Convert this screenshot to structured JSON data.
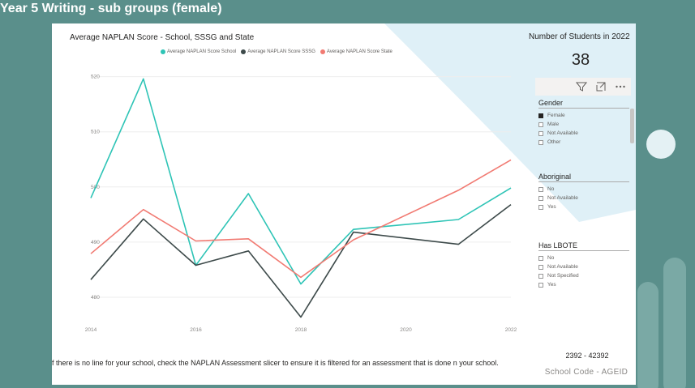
{
  "page": {
    "title": "Year 5 Writing - sub groups (female)"
  },
  "chart": {
    "title": "Average NAPLAN Score - School, SSSG and State",
    "legend": [
      {
        "label": "Average NAPLAN Score School",
        "color": "#2ec4b6"
      },
      {
        "label": "Average NAPLAN Score SSSG",
        "color": "#3d4a4a"
      },
      {
        "label": "Average NAPLAN Score State",
        "color": "#f17a72"
      }
    ]
  },
  "chart_data": {
    "type": "line",
    "x": [
      2014,
      2015,
      2016,
      2017,
      2018,
      2019,
      2021,
      2022
    ],
    "x_ticks": [
      "2014",
      "2016",
      "2018",
      "2020",
      "2022"
    ],
    "y_ticks": [
      "520",
      "510",
      "500",
      "490",
      "480"
    ],
    "xlim": [
      2014,
      2022
    ],
    "ylim": [
      475,
      522
    ],
    "series": [
      {
        "name": "Average NAPLAN Score School",
        "color": "#2ec4b6",
        "values": [
          498,
          519.6,
          485.8,
          498.8,
          482.4,
          492.3,
          494.1,
          499.8
        ]
      },
      {
        "name": "Average NAPLAN Score SSSG",
        "color": "#3d4a4a",
        "values": [
          483.2,
          494.2,
          485.8,
          488.4,
          476.4,
          491.8,
          489.6,
          496.8
        ]
      },
      {
        "name": "Average NAPLAN Score State",
        "color": "#f17a72",
        "values": [
          487.9,
          495.9,
          490.2,
          490.6,
          483.6,
          490.4,
          499.4,
          504.9
        ]
      }
    ],
    "grid": true,
    "legend_position": "top"
  },
  "kpi": {
    "title": "Number of Students in 2022",
    "value": "38"
  },
  "toolbar": {
    "icons": [
      "filter-icon",
      "expand-icon",
      "more-options-icon"
    ]
  },
  "slicers": {
    "gender": {
      "title": "Gender",
      "items": [
        {
          "label": "Female",
          "checked": true
        },
        {
          "label": "Male",
          "checked": false
        },
        {
          "label": "Not Available",
          "checked": false
        },
        {
          "label": "Other",
          "checked": false
        }
      ]
    },
    "aboriginal": {
      "title": "Aboriginal",
      "items": [
        {
          "label": "No",
          "checked": false
        },
        {
          "label": "Not Available",
          "checked": false
        },
        {
          "label": "Yes",
          "checked": false
        }
      ]
    },
    "lbote": {
      "title": "Has LBOTE",
      "items": [
        {
          "label": "No",
          "checked": false
        },
        {
          "label": "Not Available",
          "checked": false
        },
        {
          "label": "Not Specified",
          "checked": false
        },
        {
          "label": "Yes",
          "checked": false
        }
      ]
    }
  },
  "footer": {
    "note": "f there is no line for your school, check the NAPLAN Assessment slicer to ensure it is filtered for an assessment that is done n your school.",
    "school_id": "2392 - 42392",
    "school_code": "School Code  - AGEID"
  }
}
